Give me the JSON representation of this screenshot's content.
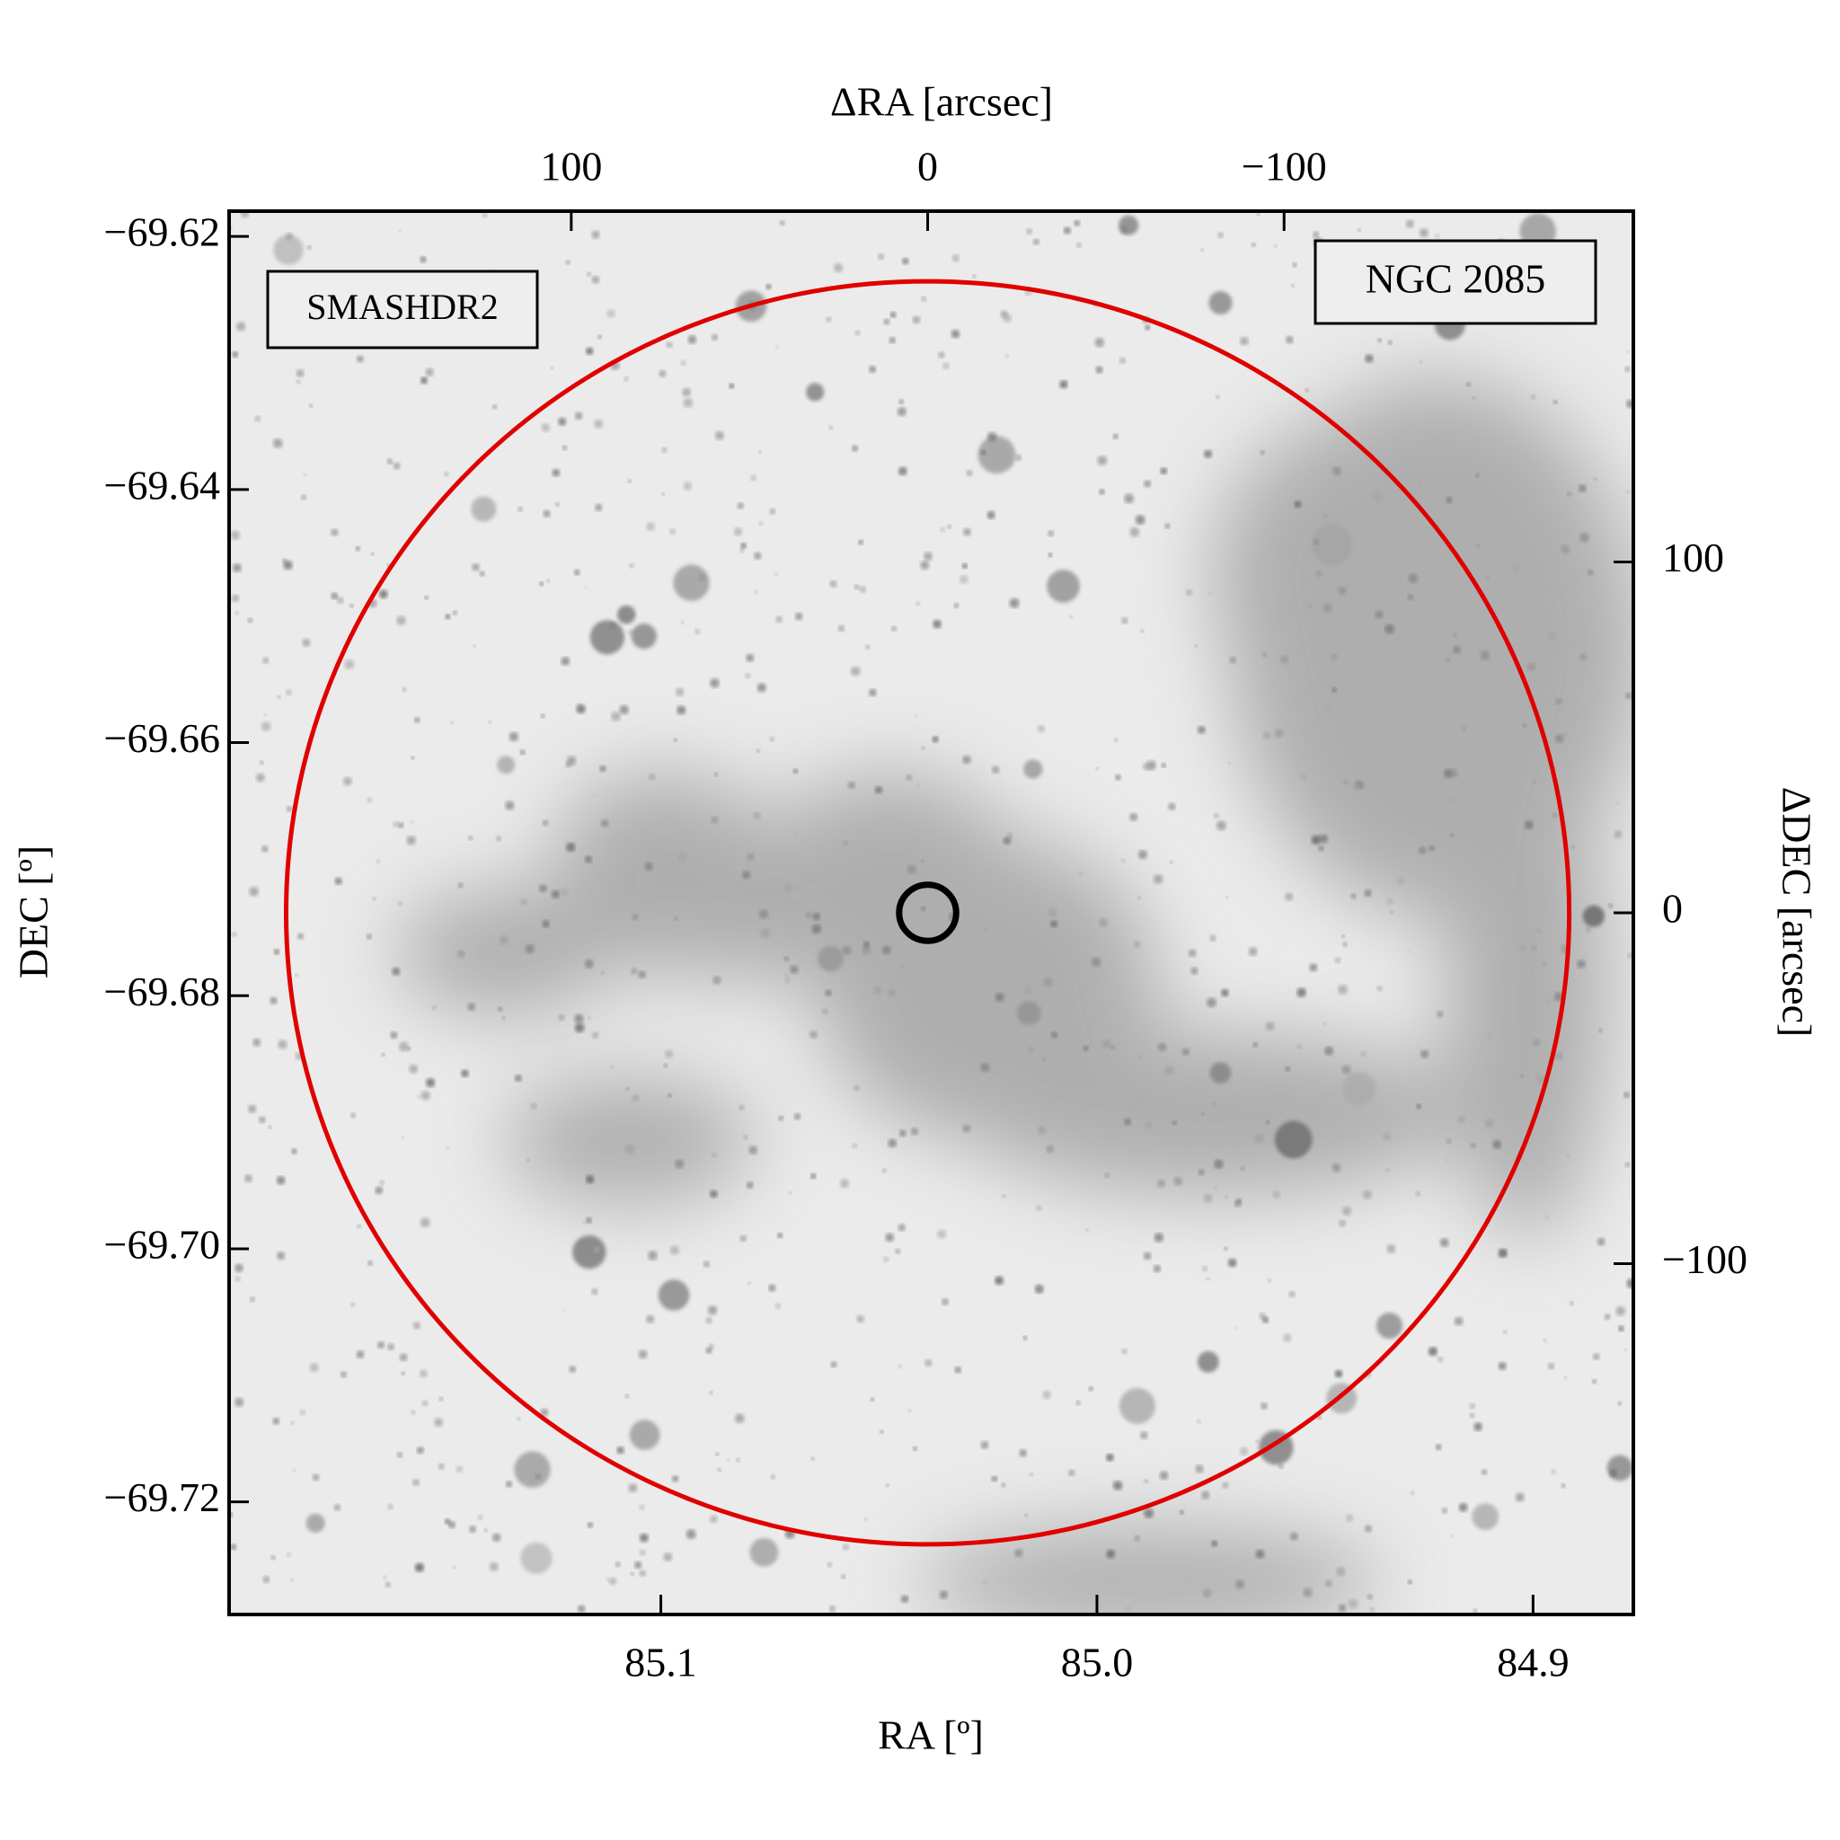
{
  "chart_data": {
    "type": "image",
    "x_label": "RA [º]",
    "y_label": "DEC [º]",
    "x2_label": "ΔRA [arcsec]",
    "y2_label": "ΔDEC [arcsec]",
    "xlim": [
      85.199,
      84.877
    ],
    "xticks": [
      85.1,
      {
        "value": 85.0,
        "label": "85.0"
      },
      84.9
    ],
    "ylim": [
      -69.7289,
      -69.618
    ],
    "yticks": [
      {
        "value": -69.62,
        "label": "−69.62"
      },
      {
        "value": -69.64,
        "label": "−69.64"
      },
      {
        "value": -69.66,
        "label": "−69.66"
      },
      {
        "value": -69.68,
        "label": "−69.68"
      },
      {
        "value": -69.7,
        "label": "−69.70"
      },
      {
        "value": -69.72,
        "label": "−69.72"
      }
    ],
    "x2lim": [
      196,
      -198
    ],
    "x2ticks": [
      100,
      0,
      {
        "value": -100,
        "label": "−100"
      }
    ],
    "y2lim": [
      -200,
      200
    ],
    "y2ticks": [
      100,
      0,
      {
        "value": -100,
        "label": "−100"
      }
    ],
    "circles": [
      {
        "x": 0,
        "y": 0,
        "r": 180,
        "color": "#e00000"
      },
      {
        "x": 0,
        "y": 0,
        "r": 8,
        "color": "#000000"
      }
    ],
    "annotations": [
      {
        "text": "SMASHDR2",
        "color": "#e00000"
      },
      {
        "text": "NGC 2085",
        "color": "#000000"
      }
    ]
  }
}
